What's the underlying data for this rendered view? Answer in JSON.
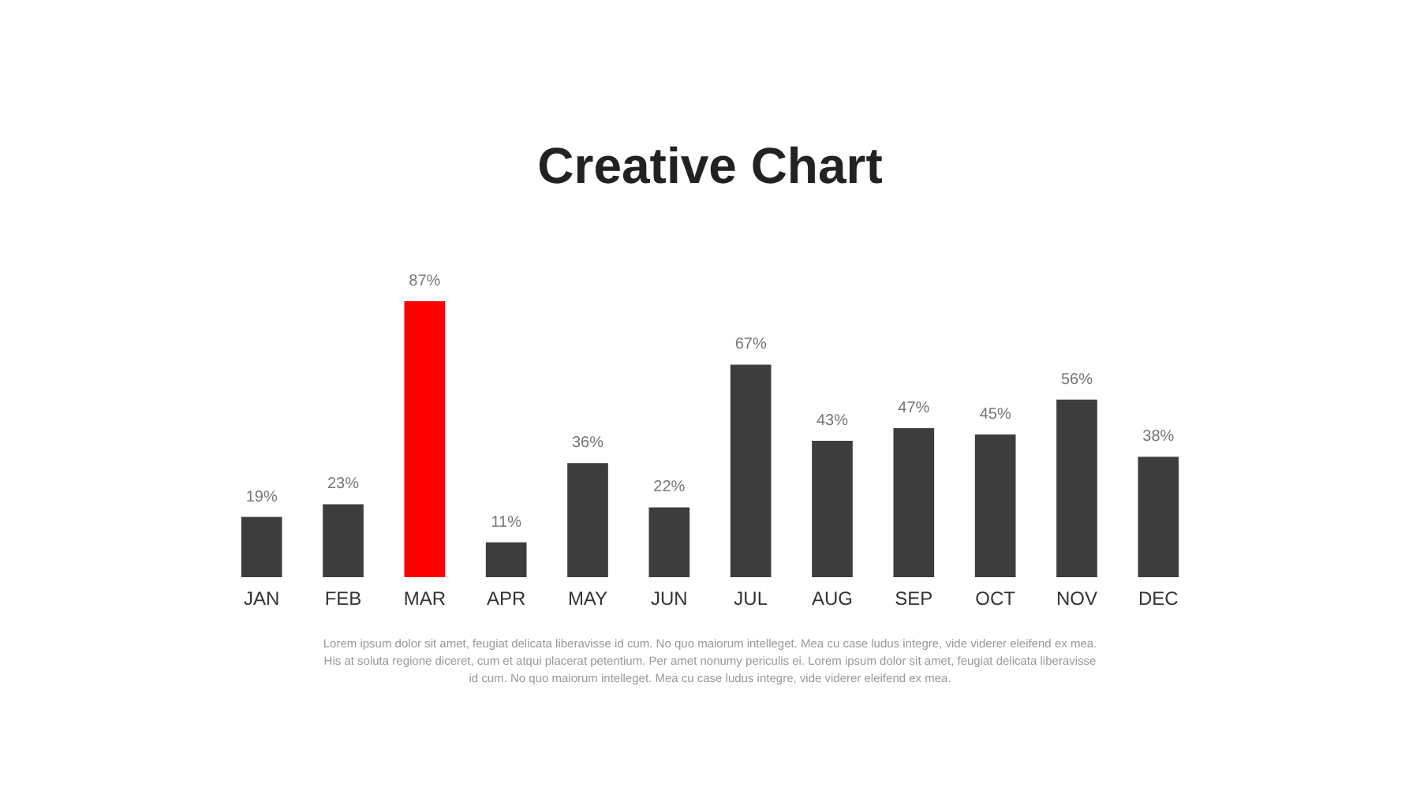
{
  "chart_data": {
    "type": "bar",
    "title": "Creative Chart",
    "categories": [
      "JAN",
      "FEB",
      "MAR",
      "APR",
      "MAY",
      "JUN",
      "JUL",
      "AUG",
      "SEP",
      "OCT",
      "NOV",
      "DEC"
    ],
    "values": [
      19,
      23,
      87,
      11,
      36,
      22,
      67,
      43,
      47,
      45,
      56,
      38
    ],
    "value_labels": [
      "19%",
      "23%",
      "87%",
      "11%",
      "36%",
      "22%",
      "67%",
      "43%",
      "47%",
      "45%",
      "56%",
      "38%"
    ],
    "colors": [
      "#3d3d3d",
      "#3d3d3d",
      "#ff0000",
      "#3d3d3d",
      "#3d3d3d",
      "#3d3d3d",
      "#3d3d3d",
      "#3d3d3d",
      "#3d3d3d",
      "#3d3d3d",
      "#3d3d3d",
      "#3d3d3d"
    ],
    "grid": false,
    "annotations": [
      "Lorem ipsum dolor sit amet, feugiat delicata liberavisse id cum. No quo maiorum intelleget. Mea cu case ludus integre, vide viderer eleifend ex mea. His at soluta regione diceret, cum et atqui placerat petentium. Per amet nonumy periculis ei. Lorem ipsum dolor sit amet, feugiat delicata liberavisse id cum. No quo maiorum intelleget. Mea cu case ludus integre, vide viderer eleifend ex mea."
    ]
  }
}
